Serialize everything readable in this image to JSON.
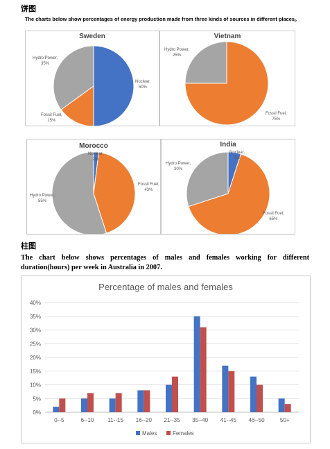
{
  "pie_section": {
    "heading": "饼图",
    "intro": "The charts below show percentages of energy production made from three kinds of sources in different places。"
  },
  "bar_section": {
    "heading": "柱图",
    "intro": "The chart below shows percentages of males and females working for different duration(hours) per week in Australia in 2007."
  },
  "colors": {
    "nuclear": "#4472c4",
    "fossil": "#ed7d31",
    "hydro": "#a5a5a5",
    "males": "#4472c4",
    "females": "#c0504d"
  },
  "chart_data": [
    {
      "type": "pie",
      "title": "Sweden",
      "slices": [
        {
          "name": "Nuclear",
          "label": "Nuclear,",
          "pct": "50%",
          "value": 50
        },
        {
          "name": "Fossil Fuel",
          "label": "Fossil Fuel,",
          "pct": "15%",
          "value": 15
        },
        {
          "name": "Hydro Power",
          "label": "Hydro Power,",
          "pct": "35%",
          "value": 35
        }
      ]
    },
    {
      "type": "pie",
      "title": "Vietnam",
      "slices": [
        {
          "name": "Fossil Fuel",
          "label": "Fossil Fuel,",
          "pct": "75%",
          "value": 75
        },
        {
          "name": "Hydro Power",
          "label": "Hydro Power,",
          "pct": "25%",
          "value": 25
        }
      ]
    },
    {
      "type": "pie",
      "title": "Morocco",
      "slices": [
        {
          "name": "Nuclear",
          "label": "Nuclear,",
          "pct": "2%",
          "value": 2
        },
        {
          "name": "Fossil Fuel",
          "label": "Fossil Fuel,",
          "pct": "43%",
          "value": 43
        },
        {
          "name": "Hydro Power",
          "label": "Hydro Power,",
          "pct": "55%",
          "value": 55
        }
      ]
    },
    {
      "type": "pie",
      "title": "India",
      "slices": [
        {
          "name": "Nuclear",
          "label": "Nuclear,",
          "pct": "5%",
          "value": 5
        },
        {
          "name": "Fossil Fuel",
          "label": "Fossil Fuel,",
          "pct": "65%",
          "value": 65
        },
        {
          "name": "Hydro Power",
          "label": "Hydro Power,",
          "pct": "30%",
          "value": 30
        }
      ]
    },
    {
      "type": "bar",
      "title": "Percentage of males and females",
      "categories": [
        "0--5",
        "6--10",
        "11--15",
        "16--20",
        "21--35",
        "35--40",
        "41--45",
        "46--50",
        "50+"
      ],
      "series": [
        {
          "name": "Males",
          "values": [
            2,
            5,
            5,
            8,
            10,
            35,
            17,
            13,
            5
          ]
        },
        {
          "name": "Females",
          "values": [
            5,
            7,
            7,
            8,
            13,
            31,
            15,
            10,
            3
          ]
        }
      ],
      "yticks": [
        "0%",
        "5%",
        "10%",
        "15%",
        "20%",
        "25%",
        "30%",
        "35%",
        "40%"
      ],
      "ylim": [
        0,
        40
      ],
      "grid": true,
      "legend": "bottom"
    }
  ]
}
